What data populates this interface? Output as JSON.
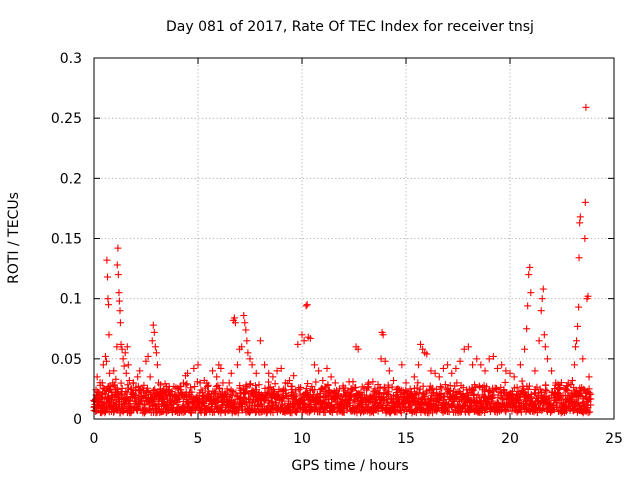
{
  "chart_data": {
    "type": "scatter",
    "title": "Day 081 of 2017, Rate Of TEC Index for receiver tnsj",
    "xlabel": "GPS time / hours",
    "ylabel": "ROTI / TECUs",
    "xlim": [
      0,
      25
    ],
    "ylim": [
      0,
      0.3
    ],
    "xticks": [
      0,
      5,
      10,
      15,
      20,
      25
    ],
    "yticks": [
      0,
      0.05,
      0.1,
      0.15,
      0.2,
      0.25,
      0.3
    ],
    "xtick_labels": [
      "0",
      "5",
      "10",
      "15",
      "20",
      "25"
    ],
    "ytick_labels": [
      "0",
      "0.05",
      "0.1",
      "0.15",
      "0.2",
      "0.25",
      "0.3"
    ],
    "grid": true,
    "marker": "+",
    "marker_color": "#ff0000",
    "series": [
      {
        "name": "ROTI",
        "points": [
          [
            0.1,
            0.02
          ],
          [
            0.15,
            0.035
          ],
          [
            0.2,
            0.012
          ],
          [
            0.3,
            0.028
          ],
          [
            0.35,
            0.018
          ],
          [
            0.4,
            0.03
          ],
          [
            0.45,
            0.045
          ],
          [
            0.5,
            0.025
          ],
          [
            0.55,
            0.052
          ],
          [
            0.6,
            0.048
          ],
          [
            0.62,
            0.132
          ],
          [
            0.65,
            0.118
          ],
          [
            0.67,
            0.1
          ],
          [
            0.7,
            0.095
          ],
          [
            0.72,
            0.07
          ],
          [
            0.75,
            0.038
          ],
          [
            0.8,
            0.027
          ],
          [
            0.85,
            0.022
          ],
          [
            0.9,
            0.03
          ],
          [
            0.95,
            0.04
          ],
          [
            1.0,
            0.018
          ],
          [
            1.05,
            0.033
          ],
          [
            1.1,
            0.06
          ],
          [
            1.12,
            0.128
          ],
          [
            1.15,
            0.142
          ],
          [
            1.17,
            0.12
          ],
          [
            1.2,
            0.105
          ],
          [
            1.22,
            0.098
          ],
          [
            1.25,
            0.09
          ],
          [
            1.27,
            0.08
          ],
          [
            1.3,
            0.062
          ],
          [
            1.35,
            0.058
          ],
          [
            1.4,
            0.05
          ],
          [
            1.45,
            0.044
          ],
          [
            1.5,
            0.055
          ],
          [
            1.55,
            0.038
          ],
          [
            1.6,
            0.06
          ],
          [
            1.65,
            0.045
          ],
          [
            1.7,
            0.032
          ],
          [
            1.8,
            0.025
          ],
          [
            1.9,
            0.03
          ],
          [
            2.0,
            0.02
          ],
          [
            2.1,
            0.035
          ],
          [
            2.2,
            0.04
          ],
          [
            2.3,
            0.015
          ],
          [
            2.4,
            0.028
          ],
          [
            2.5,
            0.048
          ],
          [
            2.6,
            0.052
          ],
          [
            2.7,
            0.035
          ],
          [
            2.8,
            0.065
          ],
          [
            2.85,
            0.078
          ],
          [
            2.9,
            0.072
          ],
          [
            2.95,
            0.06
          ],
          [
            3.0,
            0.055
          ],
          [
            3.05,
            0.045
          ],
          [
            3.1,
            0.03
          ],
          [
            3.2,
            0.025
          ],
          [
            3.3,
            0.018
          ],
          [
            3.5,
            0.02
          ],
          [
            3.7,
            0.012
          ],
          [
            3.9,
            0.015
          ],
          [
            4.1,
            0.018
          ],
          [
            4.3,
            0.03
          ],
          [
            4.4,
            0.036
          ],
          [
            4.5,
            0.038
          ],
          [
            4.6,
            0.022
          ],
          [
            4.8,
            0.042
          ],
          [
            5.0,
            0.045
          ],
          [
            5.1,
            0.03
          ],
          [
            5.3,
            0.032
          ],
          [
            5.5,
            0.028
          ],
          [
            5.7,
            0.04
          ],
          [
            5.9,
            0.035
          ],
          [
            6.0,
            0.045
          ],
          [
            6.1,
            0.042
          ],
          [
            6.2,
            0.03
          ],
          [
            6.4,
            0.025
          ],
          [
            6.5,
            0.03
          ],
          [
            6.6,
            0.038
          ],
          [
            6.7,
            0.082
          ],
          [
            6.75,
            0.084
          ],
          [
            6.8,
            0.08
          ],
          [
            6.9,
            0.045
          ],
          [
            7.0,
            0.058
          ],
          [
            7.1,
            0.06
          ],
          [
            7.2,
            0.086
          ],
          [
            7.25,
            0.08
          ],
          [
            7.3,
            0.074
          ],
          [
            7.35,
            0.065
          ],
          [
            7.4,
            0.055
          ],
          [
            7.5,
            0.05
          ],
          [
            7.6,
            0.045
          ],
          [
            7.8,
            0.038
          ],
          [
            8.0,
            0.065
          ],
          [
            8.2,
            0.045
          ],
          [
            8.4,
            0.038
          ],
          [
            8.6,
            0.035
          ],
          [
            8.8,
            0.04
          ],
          [
            9.0,
            0.042
          ],
          [
            9.2,
            0.03
          ],
          [
            9.4,
            0.032
          ],
          [
            9.6,
            0.036
          ],
          [
            9.8,
            0.062
          ],
          [
            10.0,
            0.07
          ],
          [
            10.1,
            0.065
          ],
          [
            10.2,
            0.094
          ],
          [
            10.25,
            0.095
          ],
          [
            10.3,
            0.068
          ],
          [
            10.4,
            0.067
          ],
          [
            10.6,
            0.045
          ],
          [
            10.8,
            0.04
          ],
          [
            11.0,
            0.032
          ],
          [
            11.2,
            0.042
          ],
          [
            11.4,
            0.035
          ],
          [
            11.6,
            0.03
          ],
          [
            11.8,
            0.025
          ],
          [
            12.0,
            0.02
          ],
          [
            12.2,
            0.022
          ],
          [
            12.6,
            0.06
          ],
          [
            12.7,
            0.058
          ],
          [
            12.9,
            0.02
          ],
          [
            13.2,
            0.03
          ],
          [
            13.5,
            0.025
          ],
          [
            13.8,
            0.05
          ],
          [
            13.85,
            0.072
          ],
          [
            13.9,
            0.07
          ],
          [
            14.0,
            0.048
          ],
          [
            14.2,
            0.04
          ],
          [
            14.4,
            0.032
          ],
          [
            14.6,
            0.025
          ],
          [
            14.8,
            0.045
          ],
          [
            15.0,
            0.03
          ],
          [
            15.2,
            0.025
          ],
          [
            15.4,
            0.035
          ],
          [
            15.6,
            0.045
          ],
          [
            15.7,
            0.062
          ],
          [
            15.8,
            0.058
          ],
          [
            15.9,
            0.055
          ],
          [
            16.0,
            0.054
          ],
          [
            16.2,
            0.04
          ],
          [
            16.4,
            0.038
          ],
          [
            16.6,
            0.035
          ],
          [
            16.8,
            0.042
          ],
          [
            17.0,
            0.045
          ],
          [
            17.2,
            0.038
          ],
          [
            17.4,
            0.042
          ],
          [
            17.6,
            0.048
          ],
          [
            17.8,
            0.058
          ],
          [
            18.0,
            0.06
          ],
          [
            18.2,
            0.045
          ],
          [
            18.4,
            0.05
          ],
          [
            18.6,
            0.045
          ],
          [
            18.8,
            0.04
          ],
          [
            19.0,
            0.05
          ],
          [
            19.2,
            0.052
          ],
          [
            19.4,
            0.042
          ],
          [
            19.6,
            0.045
          ],
          [
            19.8,
            0.04
          ],
          [
            20.0,
            0.038
          ],
          [
            20.2,
            0.035
          ],
          [
            20.5,
            0.045
          ],
          [
            20.7,
            0.058
          ],
          [
            20.8,
            0.075
          ],
          [
            20.85,
            0.094
          ],
          [
            20.9,
            0.12
          ],
          [
            20.95,
            0.126
          ],
          [
            21.0,
            0.105
          ],
          [
            21.2,
            0.04
          ],
          [
            21.4,
            0.065
          ],
          [
            21.5,
            0.09
          ],
          [
            21.55,
            0.1
          ],
          [
            21.6,
            0.108
          ],
          [
            21.65,
            0.07
          ],
          [
            21.7,
            0.06
          ],
          [
            21.8,
            0.05
          ],
          [
            22.0,
            0.04
          ],
          [
            22.2,
            0.03
          ],
          [
            22.4,
            0.028
          ],
          [
            22.6,
            0.025
          ],
          [
            22.8,
            0.03
          ],
          [
            23.0,
            0.032
          ],
          [
            23.1,
            0.045
          ],
          [
            23.15,
            0.06
          ],
          [
            23.2,
            0.065
          ],
          [
            23.25,
            0.077
          ],
          [
            23.3,
            0.093
          ],
          [
            23.32,
            0.134
          ],
          [
            23.35,
            0.163
          ],
          [
            23.38,
            0.168
          ],
          [
            23.5,
            0.05
          ],
          [
            23.6,
            0.15
          ],
          [
            23.62,
            0.18
          ],
          [
            23.65,
            0.259
          ],
          [
            23.7,
            0.1
          ],
          [
            23.75,
            0.102
          ],
          [
            23.8,
            0.035
          ]
        ],
        "band": {
          "note": "dense cluster of low ROTI values across the whole day",
          "x_start": 0.0,
          "x_end": 23.9,
          "y_range": [
            0.005,
            0.032
          ]
        }
      }
    ]
  }
}
